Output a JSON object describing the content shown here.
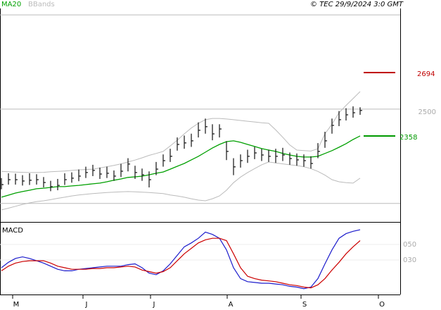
{
  "chart_data": {
    "type": "ohlc",
    "credit": "© TEC 29/9/2024 3:0 GMT",
    "xlim": [
      -0.2,
      56.7
    ],
    "xticks": [
      {
        "value": 1.6,
        "label": "M"
      },
      {
        "value": 11.6,
        "label": "J"
      },
      {
        "value": 21.2,
        "label": "J"
      },
      {
        "value": 32.1,
        "label": "A"
      },
      {
        "value": 42.6,
        "label": "S"
      },
      {
        "value": 53.6,
        "label": "O"
      }
    ],
    "price": {
      "ylim": [
        1902,
        3034
      ],
      "yticks": [
        2500
      ],
      "gridlines": [
        2000,
        3000
      ],
      "color": "#111111",
      "high": [
        2135,
        2160,
        2158,
        2150,
        2160,
        2155,
        2140,
        2120,
        2130,
        2160,
        2165,
        2180,
        2195,
        2205,
        2190,
        2195,
        2175,
        2210,
        2240,
        2200,
        2185,
        2170,
        2220,
        2260,
        2290,
        2350,
        2360,
        2370,
        2430,
        2450,
        2420,
        2420,
        2330,
        2240,
        2260,
        2285,
        2300,
        2290,
        2285,
        2290,
        2295,
        2270,
        2265,
        2260,
        2250,
        2320,
        2380,
        2450,
        2490,
        2505,
        2515,
        2510
      ],
      "low": [
        2075,
        2100,
        2100,
        2095,
        2098,
        2100,
        2085,
        2065,
        2070,
        2098,
        2110,
        2118,
        2135,
        2145,
        2130,
        2135,
        2120,
        2140,
        2170,
        2130,
        2120,
        2085,
        2150,
        2195,
        2220,
        2280,
        2290,
        2300,
        2350,
        2370,
        2335,
        2350,
        2230,
        2150,
        2190,
        2215,
        2235,
        2225,
        2220,
        2215,
        2225,
        2205,
        2200,
        2195,
        2185,
        2240,
        2295,
        2370,
        2410,
        2440,
        2455,
        2470
      ],
      "close": [
        2100,
        2126,
        2126,
        2119,
        2123,
        2126,
        2111,
        2089,
        2096,
        2126,
        2134,
        2145,
        2164,
        2175,
        2156,
        2160,
        2145,
        2171,
        2209,
        2164,
        2152,
        2126,
        2182,
        2227,
        2250,
        2313,
        2321,
        2332,
        2388,
        2407,
        2369,
        2395,
        2276,
        2194,
        2227,
        2250,
        2268,
        2257,
        2250,
        2250,
        2257,
        2238,
        2231,
        2227,
        2212,
        2276,
        2332,
        2414,
        2444,
        2470,
        2481,
        2493
      ],
      "series": [
        {
          "name": "MA20",
          "color": "#00a000",
          "values": [
            2033,
            2044,
            2055,
            2063,
            2070,
            2078,
            2081,
            2085,
            2089,
            2089,
            2093,
            2096,
            2100,
            2104,
            2108,
            2115,
            2123,
            2130,
            2138,
            2141,
            2145,
            2152,
            2160,
            2167,
            2182,
            2197,
            2212,
            2231,
            2250,
            2272,
            2294,
            2313,
            2328,
            2332,
            2324,
            2313,
            2302,
            2291,
            2283,
            2276,
            2265,
            2257,
            2250,
            2246,
            2246,
            2250,
            2265,
            2280,
            2298,
            2317,
            2339,
            2358
          ]
        },
        {
          "name": "BBands",
          "color": "#bbbbbb",
          "upper": [
            2170,
            2168,
            2166,
            2165,
            2164,
            2164,
            2165,
            2168,
            2170,
            2172,
            2175,
            2178,
            2180,
            2182,
            2188,
            2195,
            2202,
            2210,
            2220,
            2230,
            2242,
            2255,
            2265,
            2276,
            2305,
            2335,
            2369,
            2400,
            2425,
            2444,
            2451,
            2451,
            2448,
            2444,
            2440,
            2436,
            2432,
            2428,
            2425,
            2390,
            2351,
            2310,
            2283,
            2280,
            2278,
            2290,
            2369,
            2420,
            2481,
            2520,
            2556,
            2593
          ],
          "lower": [
            1966,
            1975,
            1985,
            1995,
            2003,
            2010,
            2014,
            2020,
            2027,
            2033,
            2040,
            2045,
            2049,
            2052,
            2055,
            2058,
            2060,
            2062,
            2063,
            2062,
            2060,
            2058,
            2055,
            2052,
            2045,
            2040,
            2033,
            2025,
            2018,
            2014,
            2025,
            2040,
            2070,
            2110,
            2140,
            2164,
            2185,
            2205,
            2220,
            2215,
            2210,
            2205,
            2201,
            2195,
            2185,
            2170,
            2150,
            2126,
            2115,
            2110,
            2108,
            2134
          ]
        }
      ],
      "levels": [
        {
          "value": 2694,
          "label": "2694",
          "color": "#c00000"
        },
        {
          "value": 2358,
          "label": "2358",
          "color": "#009900"
        }
      ]
    },
    "macd": {
      "title": "MACD",
      "ylim": [
        -11.8,
        78.2
      ],
      "yticks": [
        {
          "value": 50,
          "label": "050"
        },
        {
          "value": 30,
          "label": "030"
        }
      ],
      "series": [
        {
          "color": "#1c1ccc",
          "values": [
            20,
            27,
            32,
            34,
            32,
            29,
            26,
            22,
            18,
            16,
            16,
            18,
            19,
            20,
            21,
            22,
            22,
            22,
            24,
            25,
            20,
            13,
            11,
            16,
            25,
            36,
            47,
            52,
            58,
            66,
            63,
            58,
            43,
            20,
            6,
            2,
            1,
            0,
            0,
            -1,
            -2,
            -4,
            -5,
            -7,
            -5,
            6,
            25,
            43,
            58,
            64,
            67,
            69
          ]
        },
        {
          "color": "#cc0000",
          "values": [
            16,
            22,
            26,
            28,
            29,
            29,
            29,
            26,
            22,
            20,
            18,
            18,
            18,
            19,
            19,
            20,
            20,
            21,
            22,
            21,
            17,
            15,
            13,
            15,
            20,
            29,
            38,
            45,
            52,
            56,
            58,
            58,
            55,
            38,
            20,
            9,
            6,
            4,
            3,
            2,
            0,
            -2,
            -3,
            -5,
            -6,
            -2,
            6,
            17,
            27,
            38,
            47,
            55
          ]
        }
      ]
    }
  }
}
